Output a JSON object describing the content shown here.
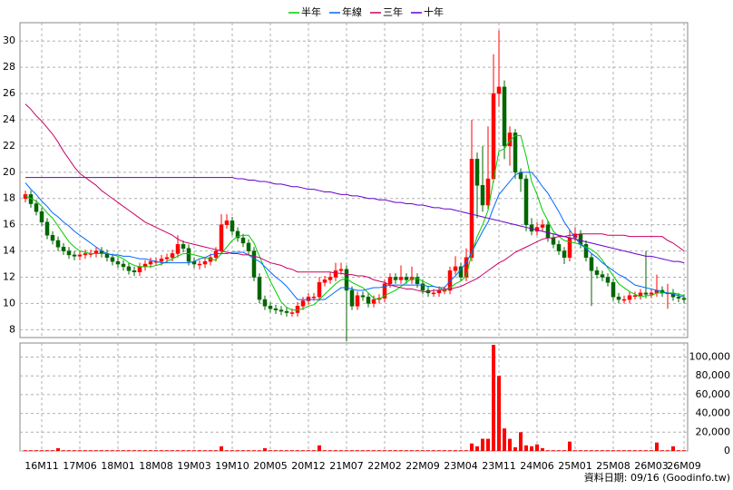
{
  "chart_data": {
    "type": "candlestick",
    "categories": [
      null,
      null,
      null,
      "16M11",
      null,
      null,
      null,
      null,
      null,
      null,
      "17M06",
      null,
      null,
      null,
      null,
      null,
      null,
      "18M01",
      null,
      null,
      null,
      null,
      null,
      null,
      "18M08",
      null,
      null,
      null,
      null,
      null,
      null,
      "19M03",
      null,
      null,
      null,
      null,
      null,
      null,
      "19M10",
      null,
      null,
      null,
      null,
      null,
      null,
      "20M05",
      null,
      null,
      null,
      null,
      null,
      null,
      "20M12",
      null,
      null,
      null,
      null,
      null,
      null,
      "21M07",
      null,
      null,
      null,
      null,
      null,
      null,
      "22M02",
      null,
      null,
      null,
      null,
      null,
      null,
      "22M09",
      null,
      null,
      null,
      null,
      null,
      null,
      "23M04",
      null,
      null,
      null,
      null,
      null,
      null,
      "23M11",
      null,
      null,
      null,
      null,
      null,
      null,
      "24M06",
      null,
      null,
      null,
      null,
      null,
      null,
      "25M01",
      null,
      null,
      null,
      null,
      null,
      null,
      "25M08",
      null,
      null,
      null,
      null,
      null,
      null,
      "26M03",
      null,
      null,
      null,
      null,
      null,
      "26M09"
    ],
    "open": [
      18.0,
      18.3,
      17.6,
      17.0,
      16.2,
      15.2,
      14.8,
      14.3,
      14.0,
      13.7,
      13.6,
      13.7,
      13.8,
      13.8,
      14.0,
      13.8,
      13.5,
      13.2,
      13.0,
      12.8,
      12.5,
      12.4,
      12.8,
      13.0,
      13.2,
      13.2,
      13.4,
      13.5,
      13.8,
      14.5,
      14.2,
      13.2,
      13.0,
      13.0,
      13.2,
      13.5,
      14.0,
      16.0,
      16.3,
      15.5,
      15.0,
      14.6,
      14.0,
      12.0,
      10.3,
      9.8,
      9.6,
      9.5,
      9.4,
      9.3,
      9.3,
      9.8,
      10.2,
      10.5,
      10.5,
      11.6,
      11.8,
      12.0,
      12.5,
      12.6,
      11.0,
      9.8,
      10.6,
      10.5,
      10.0,
      10.3,
      10.4,
      11.5,
      12.0,
      11.8,
      12.0,
      11.8,
      12.0,
      11.5,
      11.0,
      10.8,
      10.8,
      11.0,
      11.0,
      12.5,
      12.8,
      12.0,
      13.5,
      21.0,
      19.0,
      17.5,
      19.5,
      26.0,
      26.5,
      22.0,
      23.0,
      20.0,
      19.5,
      16.0,
      15.5,
      15.8,
      16.0,
      15.0,
      14.5,
      14.0,
      13.5,
      15.0,
      15.3,
      14.5,
      13.5,
      12.5,
      12.2,
      12.0,
      11.6,
      10.5,
      10.3,
      10.3,
      10.6,
      10.6,
      10.8,
      10.7,
      10.8,
      11.0,
      10.8,
      10.8,
      10.5,
      10.4
    ],
    "high": [
      18.6,
      18.6,
      17.9,
      17.3,
      16.5,
      15.5,
      15.1,
      14.6,
      14.3,
      14.0,
      14.0,
      14.1,
      14.1,
      14.3,
      14.3,
      14.1,
      13.8,
      13.5,
      13.3,
      13.1,
      12.8,
      13.1,
      13.3,
      13.5,
      13.5,
      13.7,
      13.8,
      14.1,
      15.2,
      14.8,
      14.5,
      13.5,
      13.3,
      13.5,
      13.8,
      14.3,
      16.8,
      16.8,
      16.6,
      15.8,
      15.3,
      14.9,
      14.3,
      12.3,
      10.6,
      10.1,
      9.9,
      9.8,
      9.7,
      9.6,
      10.1,
      10.5,
      10.8,
      10.8,
      12.0,
      12.1,
      12.4,
      13.1,
      13.1,
      12.9,
      11.3,
      10.9,
      10.9,
      10.8,
      10.6,
      10.7,
      11.8,
      12.3,
      12.3,
      12.9,
      12.3,
      12.8,
      12.3,
      11.8,
      11.3,
      11.1,
      11.3,
      11.3,
      12.8,
      13.6,
      13.1,
      14.2,
      24.0,
      21.5,
      22.0,
      23.5,
      29.0,
      30.8,
      27.0,
      23.5,
      23.3,
      20.3,
      19.8,
      16.5,
      16.2,
      16.4,
      16.3,
      15.3,
      14.8,
      14.3,
      15.6,
      15.8,
      15.6,
      14.8,
      13.8,
      12.8,
      12.5,
      12.3,
      11.9,
      10.8,
      10.6,
      10.9,
      10.9,
      11.1,
      14.0,
      11.1,
      12.2,
      11.3,
      11.5,
      11.1,
      10.8,
      10.7
    ],
    "low": [
      17.7,
      17.3,
      16.7,
      15.9,
      14.9,
      14.5,
      14.0,
      13.7,
      13.4,
      13.3,
      13.3,
      13.4,
      13.5,
      13.5,
      13.5,
      13.2,
      12.9,
      12.7,
      12.5,
      12.2,
      12.1,
      12.1,
      12.5,
      12.7,
      12.9,
      12.9,
      13.1,
      13.2,
      13.5,
      13.9,
      12.9,
      12.7,
      12.6,
      12.7,
      12.9,
      13.2,
      13.8,
      15.7,
      15.2,
      14.7,
      14.3,
      13.7,
      11.7,
      10.0,
      9.5,
      9.3,
      9.2,
      9.1,
      9.0,
      9.0,
      9.0,
      9.5,
      9.9,
      10.2,
      10.2,
      11.3,
      11.5,
      11.7,
      12.2,
      7.1,
      9.5,
      9.5,
      10.2,
      9.7,
      9.7,
      10.0,
      10.1,
      11.2,
      11.5,
      11.5,
      11.5,
      11.5,
      11.2,
      10.7,
      10.5,
      10.5,
      10.5,
      10.7,
      10.7,
      12.2,
      11.7,
      11.7,
      13.2,
      16.5,
      17.0,
      17.2,
      19.2,
      25.0,
      21.0,
      20.5,
      19.5,
      18.5,
      15.5,
      15.2,
      15.2,
      15.5,
      14.7,
      14.2,
      13.7,
      13.0,
      13.2,
      14.7,
      14.2,
      13.2,
      9.8,
      11.9,
      11.7,
      11.3,
      10.2,
      10.0,
      10.0,
      10.0,
      10.3,
      10.3,
      10.4,
      10.4,
      10.5,
      10.5,
      9.6,
      10.2,
      10.1,
      10.0
    ],
    "close": [
      18.3,
      17.6,
      17.0,
      16.2,
      15.2,
      14.8,
      14.3,
      14.0,
      13.7,
      13.6,
      13.7,
      13.8,
      13.8,
      14.0,
      13.8,
      13.5,
      13.2,
      13.0,
      12.8,
      12.5,
      12.4,
      12.8,
      13.0,
      13.2,
      13.2,
      13.4,
      13.5,
      13.8,
      14.5,
      14.2,
      13.2,
      13.0,
      13.0,
      13.2,
      13.5,
      14.0,
      16.0,
      16.3,
      15.5,
      15.0,
      14.6,
      14.0,
      12.0,
      10.3,
      9.8,
      9.6,
      9.5,
      9.4,
      9.3,
      9.3,
      9.8,
      10.2,
      10.5,
      10.5,
      11.6,
      11.8,
      12.0,
      12.5,
      12.6,
      11.0,
      9.8,
      10.6,
      10.5,
      10.0,
      10.3,
      10.4,
      11.5,
      12.0,
      11.8,
      12.0,
      11.8,
      12.0,
      11.5,
      11.0,
      10.8,
      10.8,
      11.0,
      11.0,
      12.5,
      12.8,
      12.0,
      13.5,
      21.0,
      19.0,
      17.5,
      19.5,
      26.0,
      26.5,
      22.0,
      23.0,
      20.0,
      19.5,
      16.0,
      15.5,
      15.8,
      16.0,
      15.0,
      14.5,
      14.0,
      13.5,
      15.0,
      15.3,
      14.5,
      13.5,
      12.5,
      12.2,
      12.0,
      11.6,
      10.5,
      10.3,
      10.3,
      10.6,
      10.6,
      10.8,
      10.7,
      10.8,
      11.0,
      10.8,
      10.8,
      10.5,
      10.4,
      10.3
    ],
    "up_color": "#ff0000",
    "down_color": "#006600",
    "series": [
      {
        "name": "半年",
        "color": "#00cc00",
        "values": [
          18.2,
          18.0,
          17.8,
          17.4,
          16.9,
          16.5,
          15.9,
          15.3,
          14.7,
          14.3,
          14.0,
          13.9,
          13.8,
          13.8,
          13.8,
          13.8,
          13.7,
          13.6,
          13.4,
          13.1,
          12.9,
          12.8,
          12.8,
          12.8,
          12.9,
          13.0,
          13.2,
          13.4,
          13.6,
          13.8,
          13.8,
          13.7,
          13.6,
          13.5,
          13.4,
          13.3,
          13.8,
          14.3,
          14.8,
          15.1,
          15.2,
          15.2,
          14.6,
          13.6,
          12.6,
          11.7,
          10.9,
          10.1,
          9.7,
          9.5,
          9.5,
          9.6,
          9.8,
          9.9,
          10.3,
          10.7,
          11.1,
          11.5,
          11.8,
          11.9,
          11.6,
          11.4,
          11.2,
          10.8,
          10.4,
          10.3,
          10.6,
          10.8,
          11.0,
          11.3,
          11.6,
          11.9,
          11.9,
          11.7,
          11.5,
          11.3,
          11.2,
          11.0,
          11.2,
          11.5,
          11.7,
          12.1,
          13.8,
          15.1,
          16.0,
          17.1,
          19.4,
          21.6,
          21.8,
          22.4,
          22.8,
          22.8,
          21.2,
          19.3,
          18.3,
          17.1,
          16.3,
          15.5,
          15.1,
          14.8,
          14.7,
          14.6,
          14.5,
          14.3,
          14.1,
          13.8,
          13.3,
          12.7,
          12.1,
          11.5,
          11.2,
          10.9,
          10.7,
          10.5,
          10.6,
          10.6,
          10.8,
          10.8,
          10.8,
          10.8,
          10.7,
          10.6
        ]
      },
      {
        "name": "年線",
        "color": "#0066ff",
        "values": [
          19.2,
          18.7,
          18.3,
          17.8,
          17.4,
          16.9,
          16.6,
          16.2,
          15.9,
          15.5,
          15.2,
          14.9,
          14.6,
          14.3,
          14.0,
          13.8,
          13.7,
          13.7,
          13.6,
          13.6,
          13.5,
          13.4,
          13.4,
          13.3,
          13.2,
          13.1,
          13.1,
          13.1,
          13.1,
          13.1,
          13.1,
          13.2,
          13.4,
          13.5,
          13.7,
          13.8,
          13.8,
          13.8,
          13.9,
          13.9,
          13.9,
          13.7,
          13.4,
          13.2,
          12.8,
          12.4,
          12.0,
          11.7,
          11.3,
          10.8,
          10.3,
          10.3,
          10.3,
          10.3,
          10.3,
          10.3,
          10.6,
          10.9,
          11.2,
          11.2,
          11.1,
          11.0,
          11.0,
          11.1,
          11.2,
          11.2,
          11.3,
          11.4,
          11.4,
          11.4,
          11.4,
          11.4,
          11.4,
          11.4,
          11.3,
          11.3,
          11.2,
          11.2,
          11.7,
          12.1,
          12.6,
          13.1,
          13.9,
          14.7,
          15.5,
          16.2,
          17.3,
          18.3,
          18.8,
          19.3,
          19.8,
          20.0,
          20.0,
          20.0,
          19.5,
          18.9,
          18.4,
          17.7,
          17.0,
          16.2,
          15.6,
          15.0,
          14.5,
          14.2,
          13.8,
          13.5,
          13.1,
          12.8,
          12.5,
          12.2,
          12.0,
          11.7,
          11.4,
          11.3,
          11.2,
          11.1,
          11.0,
          10.9,
          10.8,
          10.7,
          10.6,
          10.5
        ]
      },
      {
        "name": "三年",
        "color": "#cc0066",
        "values": [
          25.2,
          24.8,
          24.3,
          23.9,
          23.4,
          22.9,
          22.3,
          21.6,
          21.0,
          20.4,
          19.9,
          19.6,
          19.3,
          19.0,
          18.6,
          18.3,
          18.0,
          17.7,
          17.4,
          17.1,
          16.8,
          16.5,
          16.2,
          16.0,
          15.8,
          15.6,
          15.4,
          15.2,
          14.9,
          14.7,
          14.6,
          14.5,
          14.4,
          14.3,
          14.2,
          14.1,
          14.0,
          13.9,
          13.8,
          13.8,
          13.7,
          13.7,
          13.6,
          13.5,
          13.3,
          13.1,
          13.0,
          12.9,
          12.7,
          12.6,
          12.4,
          12.4,
          12.4,
          12.4,
          12.4,
          12.4,
          12.4,
          12.3,
          12.3,
          12.2,
          12.2,
          12.1,
          12.1,
          12.0,
          11.8,
          11.7,
          11.6,
          11.4,
          11.3,
          11.2,
          11.1,
          11.1,
          11.0,
          10.9,
          10.9,
          11.0,
          11.0,
          11.1,
          11.1,
          11.2,
          11.3,
          11.5,
          11.7,
          11.9,
          12.2,
          12.5,
          12.8,
          13.1,
          13.3,
          13.6,
          13.9,
          14.1,
          14.3,
          14.5,
          14.7,
          14.9,
          15.0,
          15.0,
          15.1,
          15.1,
          15.2,
          15.2,
          15.3,
          15.3,
          15.3,
          15.3,
          15.3,
          15.2,
          15.2,
          15.2,
          15.2,
          15.1,
          15.1,
          15.1,
          15.1,
          15.1,
          15.1,
          15.1,
          14.8,
          14.6,
          14.3,
          14.0
        ]
      },
      {
        "name": "十年",
        "color": "#6600cc",
        "values": [
          19.6,
          19.6,
          19.6,
          19.6,
          19.6,
          19.6,
          19.6,
          19.6,
          19.6,
          19.6,
          19.6,
          19.6,
          19.6,
          19.6,
          19.6,
          19.6,
          19.6,
          19.6,
          19.6,
          19.6,
          19.6,
          19.6,
          19.6,
          19.6,
          19.6,
          19.6,
          19.6,
          19.6,
          19.6,
          19.6,
          19.6,
          19.6,
          19.6,
          19.6,
          19.6,
          19.6,
          19.6,
          19.6,
          19.6,
          19.5,
          19.5,
          19.4,
          19.4,
          19.3,
          19.3,
          19.2,
          19.1,
          19.1,
          19.0,
          18.9,
          18.9,
          18.8,
          18.7,
          18.7,
          18.6,
          18.5,
          18.5,
          18.4,
          18.3,
          18.3,
          18.2,
          18.2,
          18.1,
          18.0,
          18.0,
          17.9,
          17.9,
          17.8,
          17.7,
          17.7,
          17.6,
          17.6,
          17.5,
          17.5,
          17.4,
          17.3,
          17.3,
          17.2,
          17.2,
          17.1,
          17.0,
          16.9,
          16.8,
          16.7,
          16.6,
          16.5,
          16.4,
          16.3,
          16.2,
          16.1,
          16.0,
          15.9,
          15.8,
          15.7,
          15.6,
          15.5,
          15.4,
          15.3,
          15.2,
          15.1,
          15.0,
          14.9,
          14.8,
          14.7,
          14.6,
          14.5,
          14.4,
          14.3,
          14.2,
          14.1,
          14.0,
          13.9,
          13.8,
          13.7,
          13.6,
          13.6,
          13.5,
          13.4,
          13.3,
          13.2,
          13.2,
          13.1
        ]
      }
    ],
    "ylim": [
      7.4,
      31.4
    ],
    "yticks": [
      8,
      10,
      12,
      14,
      16,
      18,
      20,
      22,
      24,
      26,
      28,
      30
    ],
    "volume": {
      "color": "#ff0000",
      "values": [
        800,
        800,
        800,
        800,
        800,
        800,
        3000,
        800,
        800,
        800,
        800,
        800,
        800,
        800,
        800,
        800,
        800,
        800,
        800,
        800,
        800,
        800,
        800,
        800,
        800,
        800,
        800,
        800,
        800,
        800,
        800,
        800,
        800,
        800,
        800,
        800,
        5000,
        800,
        800,
        800,
        800,
        800,
        800,
        800,
        3000,
        800,
        800,
        800,
        800,
        800,
        800,
        800,
        800,
        800,
        6000,
        800,
        800,
        800,
        800,
        800,
        800,
        800,
        800,
        800,
        800,
        800,
        800,
        800,
        800,
        800,
        800,
        800,
        800,
        800,
        800,
        800,
        800,
        800,
        800,
        800,
        800,
        800,
        8000,
        5000,
        13000,
        13000,
        113000,
        80000,
        24000,
        13000,
        4000,
        20000,
        6000,
        5000,
        7000,
        3000,
        800,
        800,
        800,
        800,
        10000,
        800,
        800,
        800,
        800,
        800,
        800,
        800,
        800,
        800,
        800,
        800,
        800,
        800,
        800,
        800,
        9000,
        800,
        800,
        5000,
        800,
        800
      ]
    },
    "y2lim": [
      0,
      115000
    ],
    "y2ticks": [
      0,
      {
        "value": 20000,
        "label": "20,000"
      },
      {
        "value": 40000,
        "label": "40,000"
      },
      {
        "value": 60000,
        "label": "60,000"
      },
      {
        "value": 80000,
        "label": "80,000"
      },
      {
        "value": 100000,
        "label": "100,000"
      }
    ],
    "grid": true,
    "legend": "top",
    "footer": "資料日期: 09/16 (Goodinfo.tw)"
  }
}
